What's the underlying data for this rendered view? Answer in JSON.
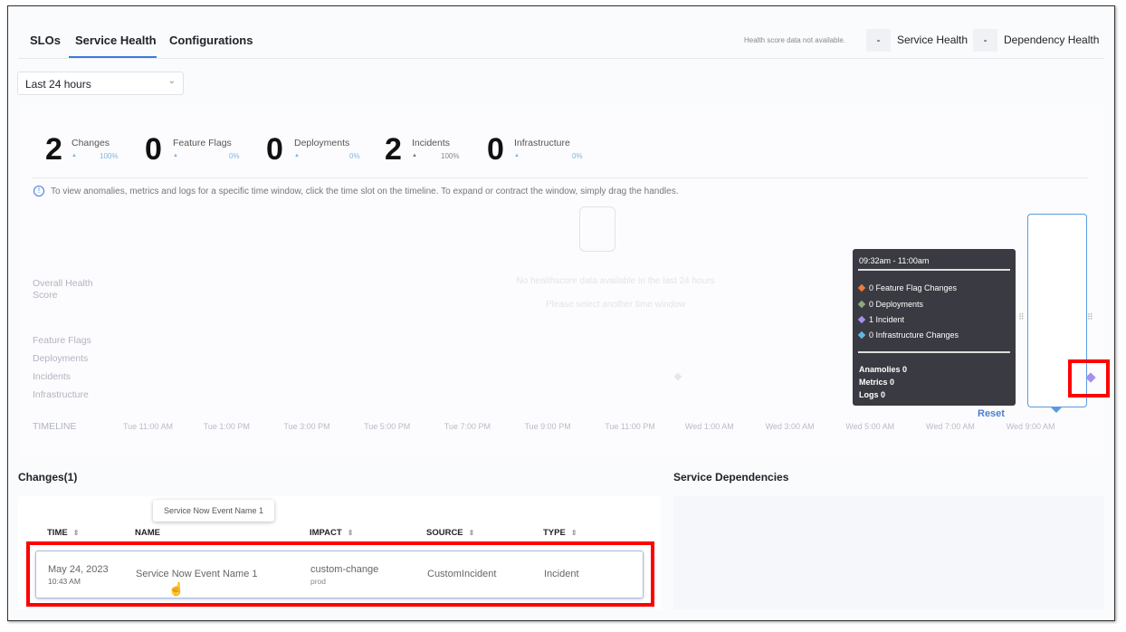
{
  "tabs": [
    {
      "label": "SLOs"
    },
    {
      "label": "Service Health"
    },
    {
      "label": "Configurations"
    }
  ],
  "health": {
    "note": "Health score data not available.",
    "service_value": "-",
    "service_label": "Service Health",
    "dependency_value": "-",
    "dependency_label": "Dependency Health"
  },
  "time_range": {
    "selected": "Last 24 hours"
  },
  "summary": [
    {
      "count": "2",
      "label": "Changes",
      "pct": "100%"
    },
    {
      "count": "0",
      "label": "Feature Flags",
      "pct": "0%"
    },
    {
      "count": "0",
      "label": "Deployments",
      "pct": "0%"
    },
    {
      "count": "2",
      "label": "Incidents",
      "pct": "100%"
    },
    {
      "count": "0",
      "label": "Infrastructure",
      "pct": "0%"
    }
  ],
  "info": "To view anomalies, metrics and logs for a specific time window, click the time slot on the timeline. To expand or contract the window, simply drag the handles.",
  "timeline": {
    "rows": [
      "Overall Health Score",
      "Feature Flags",
      "Deployments",
      "Incidents",
      "Infrastructure"
    ],
    "empty_title": "No healthscore data available in the last 24 hours",
    "empty_sub": "Please select another time window",
    "label": "TIMELINE",
    "ticks": [
      "Tue 11:00 AM",
      "Tue 1:00 PM",
      "Tue 3:00 PM",
      "Tue 5:00 PM",
      "Tue 7:00 PM",
      "Tue 9:00 PM",
      "Tue 11:00 PM",
      "Wed 1:00 AM",
      "Wed 3:00 AM",
      "Wed 5:00 AM",
      "Wed 7:00 AM",
      "Wed 9:00 AM"
    ],
    "reset": "Reset",
    "tooltip": {
      "range": "09:32am - 11:00am",
      "items": [
        {
          "text": "0 Feature Flag Changes",
          "color": "#f07a3a"
        },
        {
          "text": "0 Deployments",
          "color": "#8fa87e"
        },
        {
          "text": "1 Incident",
          "color": "#a58ff0"
        },
        {
          "text": "0 Infrastructure Changes",
          "color": "#5fb6e8"
        }
      ],
      "stats": [
        "Anamolies 0",
        "Metrics 0",
        "Logs 0"
      ]
    }
  },
  "changes": {
    "title": "Changes(1)",
    "columns": [
      "TIME",
      "NAME",
      "IMPACT",
      "SOURCE",
      "TYPE"
    ],
    "rows": [
      {
        "date": "May 24, 2023",
        "time": "10:43 AM",
        "name": "Service Now Event Name 1",
        "impact": "custom-change",
        "env": "prod",
        "source": "CustomIncident",
        "type": "Incident"
      }
    ],
    "name_tooltip": "Service Now Event Name 1"
  },
  "dependencies": {
    "title": "Service Dependencies"
  }
}
